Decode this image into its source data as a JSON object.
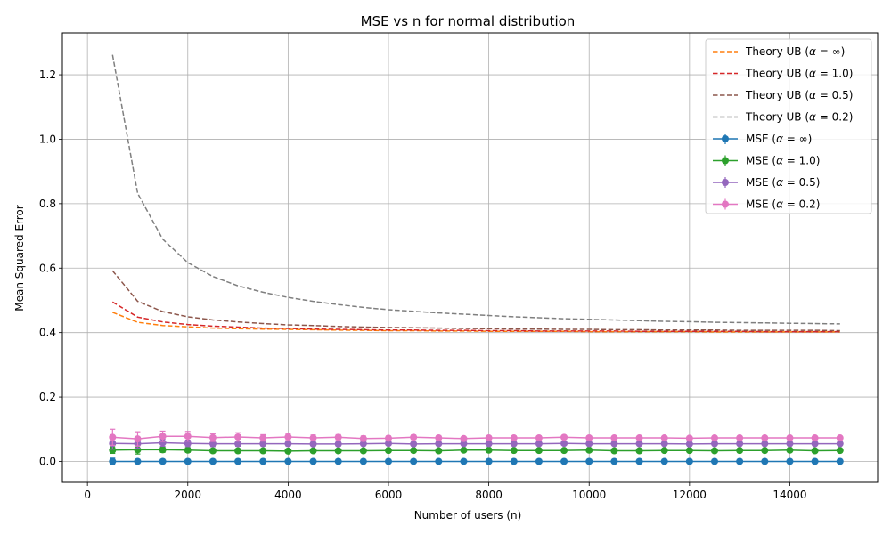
{
  "chart_data": {
    "type": "line",
    "title": "MSE vs n for normal distribution",
    "xlabel": "Number of users (n)",
    "ylabel": "Mean Squared Error",
    "xlim": [
      -500,
      15750
    ],
    "ylim": [
      -0.065,
      1.33
    ],
    "xticks": [
      0,
      2000,
      4000,
      6000,
      8000,
      10000,
      12000,
      14000
    ],
    "yticks": [
      0.0,
      0.2,
      0.4,
      0.6,
      0.8,
      1.0,
      1.2
    ],
    "grid": true,
    "legend_position": "top-right",
    "x": [
      500,
      1000,
      1500,
      2000,
      2500,
      3000,
      3500,
      4000,
      4500,
      5000,
      5500,
      6000,
      6500,
      7000,
      7500,
      8000,
      8500,
      9000,
      9500,
      10000,
      10500,
      11000,
      11500,
      12000,
      12500,
      13000,
      13500,
      14000,
      14500,
      15000
    ],
    "theory_series": [
      {
        "name": "Theory UB ($\\alpha=\\infty$)",
        "label_prefix": "Theory UB (",
        "label_alpha": "α",
        "label_value": " = ∞)",
        "color": "#ff7f0e",
        "values": [
          0.463,
          0.432,
          0.422,
          0.418,
          0.414,
          0.412,
          0.411,
          0.41,
          0.409,
          0.408,
          0.407,
          0.406,
          0.406,
          0.405,
          0.405,
          0.404,
          0.404,
          0.404,
          0.404,
          0.403,
          0.403,
          0.403,
          0.403,
          0.403,
          0.402,
          0.402,
          0.402,
          0.402,
          0.402,
          0.402
        ]
      },
      {
        "name": "Theory UB ($\\alpha=1.0$)",
        "label_prefix": "Theory UB (",
        "label_alpha": "α",
        "label_value": " = 1.0)",
        "color": "#d62728",
        "values": [
          0.495,
          0.448,
          0.433,
          0.425,
          0.42,
          0.417,
          0.414,
          0.413,
          0.411,
          0.41,
          0.409,
          0.408,
          0.408,
          0.407,
          0.407,
          0.406,
          0.406,
          0.405,
          0.405,
          0.405,
          0.405,
          0.404,
          0.404,
          0.404,
          0.404,
          0.404,
          0.403,
          0.403,
          0.403,
          0.403
        ]
      },
      {
        "name": "Theory UB ($\\alpha=0.5$)",
        "label_prefix": "Theory UB (",
        "label_alpha": "α",
        "label_value": " = 0.5)",
        "color": "#8c564b",
        "values": [
          0.592,
          0.497,
          0.465,
          0.449,
          0.439,
          0.433,
          0.428,
          0.424,
          0.422,
          0.419,
          0.417,
          0.416,
          0.415,
          0.414,
          0.413,
          0.412,
          0.411,
          0.411,
          0.41,
          0.41,
          0.409,
          0.409,
          0.408,
          0.408,
          0.408,
          0.407,
          0.407,
          0.407,
          0.407,
          0.406
        ]
      },
      {
        "name": "Theory UB ($\\alpha=0.2$)",
        "label_prefix": "Theory UB (",
        "label_alpha": "α",
        "label_value": " = 0.2)",
        "color": "#7f7f7f",
        "values": [
          1.262,
          0.832,
          0.69,
          0.617,
          0.574,
          0.545,
          0.525,
          0.509,
          0.497,
          0.487,
          0.478,
          0.471,
          0.466,
          0.461,
          0.457,
          0.453,
          0.449,
          0.446,
          0.443,
          0.441,
          0.439,
          0.437,
          0.435,
          0.434,
          0.432,
          0.431,
          0.43,
          0.429,
          0.428,
          0.427
        ]
      }
    ],
    "mse_series": [
      {
        "name": "MSE ($\\alpha=\\infty$)",
        "label_prefix": "MSE (",
        "label_alpha": "α",
        "label_value": " = ∞)",
        "color": "#1f77b4",
        "values": [
          0.0,
          0.0,
          0.0,
          0.0,
          0.0,
          0.0,
          0.0,
          0.0,
          0.0,
          0.0,
          0.0,
          0.0,
          0.0,
          0.0,
          0.0,
          0.0,
          0.0,
          0.0,
          0.0,
          0.0,
          0.0,
          0.0,
          0.0,
          0.0,
          0.0,
          0.0,
          0.0,
          0.0,
          0.0,
          0.0
        ],
        "errors": [
          0.01,
          0.005,
          0.004,
          0.003,
          0.003,
          0.002,
          0.002,
          0.002,
          0.002,
          0.002,
          0.002,
          0.002,
          0.002,
          0.002,
          0.002,
          0.002,
          0.002,
          0.002,
          0.002,
          0.002,
          0.002,
          0.002,
          0.002,
          0.002,
          0.002,
          0.002,
          0.002,
          0.002,
          0.002,
          0.002
        ]
      },
      {
        "name": "MSE ($\\alpha=1.0$)",
        "label_prefix": "MSE (",
        "label_alpha": "α",
        "label_value": " = 1.0)",
        "color": "#2ca02c",
        "values": [
          0.035,
          0.036,
          0.036,
          0.035,
          0.033,
          0.033,
          0.033,
          0.032,
          0.033,
          0.033,
          0.033,
          0.034,
          0.034,
          0.033,
          0.035,
          0.035,
          0.034,
          0.034,
          0.034,
          0.035,
          0.033,
          0.033,
          0.034,
          0.034,
          0.033,
          0.034,
          0.034,
          0.035,
          0.033,
          0.034
        ],
        "errors": [
          0.01,
          0.013,
          0.008,
          0.007,
          0.006,
          0.006,
          0.005,
          0.005,
          0.004,
          0.004,
          0.004,
          0.004,
          0.004,
          0.004,
          0.003,
          0.003,
          0.003,
          0.003,
          0.003,
          0.003,
          0.003,
          0.003,
          0.003,
          0.003,
          0.003,
          0.003,
          0.003,
          0.003,
          0.003,
          0.003
        ]
      },
      {
        "name": "MSE ($\\alpha=0.5$)",
        "label_prefix": "MSE (",
        "label_alpha": "α",
        "label_value": " = 0.5)",
        "color": "#9467bd",
        "values": [
          0.056,
          0.055,
          0.058,
          0.056,
          0.055,
          0.055,
          0.055,
          0.055,
          0.054,
          0.054,
          0.055,
          0.056,
          0.054,
          0.055,
          0.055,
          0.055,
          0.055,
          0.055,
          0.056,
          0.055,
          0.055,
          0.055,
          0.055,
          0.054,
          0.055,
          0.055,
          0.055,
          0.055,
          0.055,
          0.055
        ],
        "errors": [
          0.018,
          0.014,
          0.011,
          0.01,
          0.009,
          0.008,
          0.007,
          0.007,
          0.006,
          0.006,
          0.006,
          0.005,
          0.005,
          0.005,
          0.005,
          0.005,
          0.004,
          0.004,
          0.004,
          0.004,
          0.004,
          0.004,
          0.004,
          0.004,
          0.004,
          0.004,
          0.004,
          0.004,
          0.004,
          0.004
        ]
      },
      {
        "name": "MSE ($\\alpha=0.2$)",
        "label_prefix": "MSE (",
        "label_alpha": "α",
        "label_value": " = 0.2)",
        "color": "#e377c2",
        "values": [
          0.075,
          0.07,
          0.078,
          0.078,
          0.074,
          0.076,
          0.073,
          0.076,
          0.073,
          0.075,
          0.071,
          0.072,
          0.075,
          0.073,
          0.071,
          0.073,
          0.073,
          0.073,
          0.075,
          0.073,
          0.073,
          0.073,
          0.073,
          0.072,
          0.073,
          0.073,
          0.073,
          0.073,
          0.073,
          0.073
        ],
        "errors": [
          0.025,
          0.022,
          0.016,
          0.015,
          0.012,
          0.013,
          0.01,
          0.009,
          0.009,
          0.008,
          0.008,
          0.007,
          0.007,
          0.007,
          0.006,
          0.006,
          0.006,
          0.006,
          0.006,
          0.006,
          0.005,
          0.005,
          0.005,
          0.005,
          0.005,
          0.005,
          0.005,
          0.005,
          0.005,
          0.005
        ]
      }
    ]
  }
}
